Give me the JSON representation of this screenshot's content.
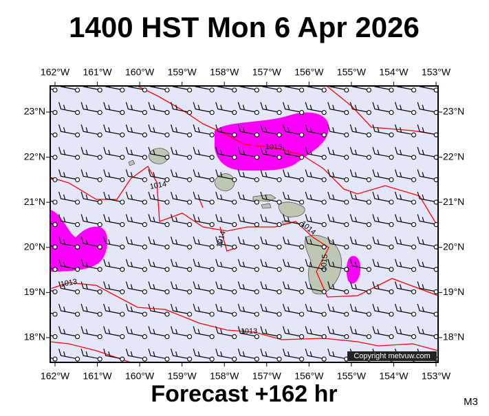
{
  "header": {
    "title": "1400 HST Mon 6 Apr 2026"
  },
  "axes": {
    "longitude": [
      "162°W",
      "161°W",
      "160°W",
      "159°W",
      "158°W",
      "157°W",
      "156°W",
      "155°W",
      "154°W",
      "153°W"
    ],
    "latitude": [
      "23°N",
      "22°N",
      "21°N",
      "20°N",
      "19°N",
      "18°N"
    ]
  },
  "isobar_labels": [
    "1015",
    "1014",
    "1014",
    "1014",
    "1015",
    "1013",
    "1013"
  ],
  "footer": {
    "forecast": "Forecast +162 hr",
    "model": "M3",
    "copyright": "Copyright metvuw.com"
  }
}
